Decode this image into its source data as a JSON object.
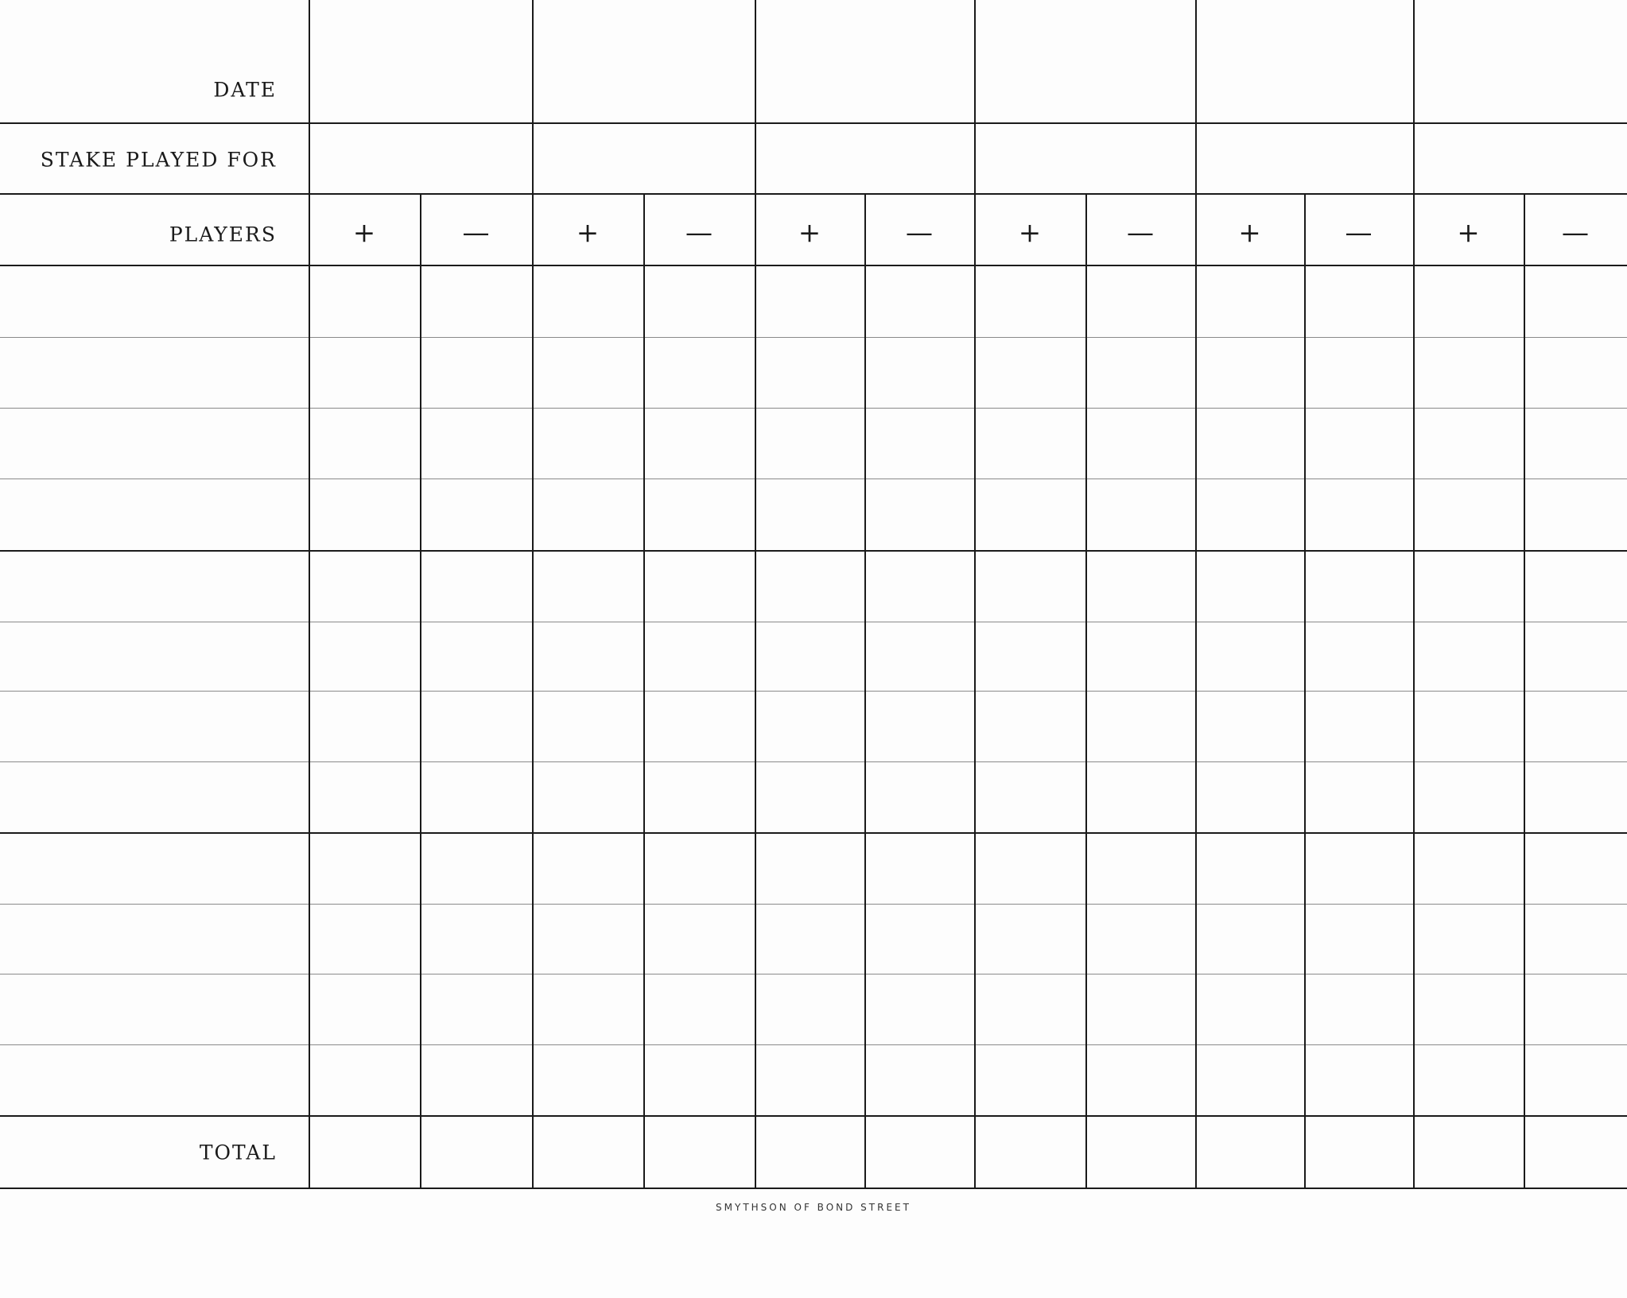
{
  "row_labels": {
    "date": "DATE",
    "stake": "STAKE PLAYED FOR",
    "players": "PLAYERS",
    "total": "TOTAL"
  },
  "signs": {
    "plus": "+",
    "minus": "—"
  },
  "game_columns": 6,
  "player_rows": 12,
  "footer": "SMYTHSON OF BOND STREET"
}
